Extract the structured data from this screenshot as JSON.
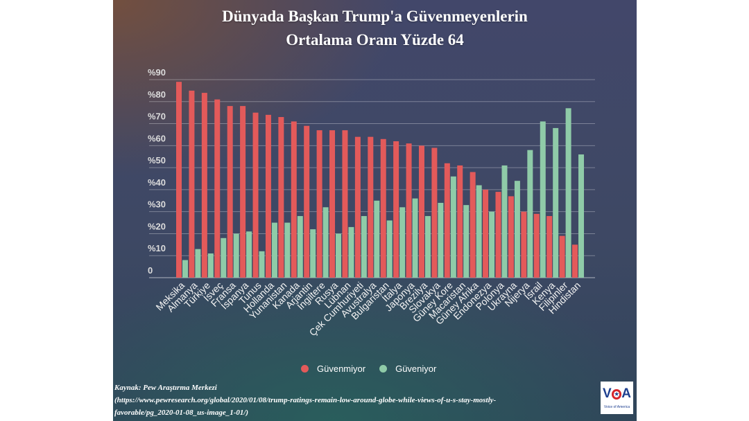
{
  "chart_data": {
    "type": "bar",
    "title": [
      "Dünyada Başkan Trump'a Güvenmeyenlerin",
      "Ortalama Oranı Yüzde 64"
    ],
    "categories": [
      "Meksika",
      "Almanya",
      "Türkiye",
      "İsveç",
      "Fransa",
      "İspanya",
      "Tunus",
      "Hollanda",
      "Yunanistan",
      "Kanada",
      "Arjantin",
      "İngiltere",
      "Rusya",
      "Lübnan",
      "Çek Cumhuriyeti",
      "Avustralya",
      "Bulgaristan",
      "İtalya",
      "Japonya",
      "Brezilya",
      "Slovakya",
      "Güney Kore",
      "Macaristan",
      "Güney Afrika",
      "Endonezya",
      "Polonya",
      "Ukrayna",
      "Nijerya",
      "İsrail",
      "Kenya",
      "Filipinler",
      "Hindistan"
    ],
    "series": [
      {
        "name": "Güvenmiyor",
        "color": "#e35a5a",
        "values": [
          89,
          85,
          84,
          81,
          78,
          78,
          75,
          74,
          73,
          71,
          69,
          67,
          67,
          67,
          64,
          64,
          63,
          62,
          61,
          60,
          59,
          52,
          51,
          48,
          40,
          39,
          37,
          30,
          29,
          28,
          19,
          15
        ]
      },
      {
        "name": "Güveniyor",
        "color": "#8fcba8",
        "values": [
          8,
          13,
          11,
          18,
          20,
          21,
          12,
          25,
          25,
          28,
          22,
          32,
          20,
          23,
          28,
          35,
          26,
          32,
          36,
          28,
          34,
          46,
          33,
          42,
          30,
          51,
          44,
          58,
          71,
          68,
          77,
          56
        ]
      }
    ],
    "ylim": [
      0,
      90
    ],
    "yticks": [
      0,
      10,
      20,
      30,
      40,
      50,
      60,
      70,
      80,
      90
    ],
    "ytick_labels": [
      "0",
      "%10",
      "%20",
      "%30",
      "%40",
      "%50",
      "%60",
      "%70",
      "%80",
      "%90"
    ],
    "grid": true,
    "legend": "bottom-center"
  },
  "source": {
    "label": "Kaynak: Pew Araştırma Merkezi",
    "lines": [
      "(https://www.pewresearch.org/global/2020/01/08/trump-ratings-remain-low-around-globe-while-views-of-u-s-stay-mostly-",
      "favorable/pg_2020-01-08_us-image_1-01/)"
    ]
  },
  "logo": {
    "letters": [
      "V",
      "A"
    ],
    "tagline": "Voice of America"
  }
}
